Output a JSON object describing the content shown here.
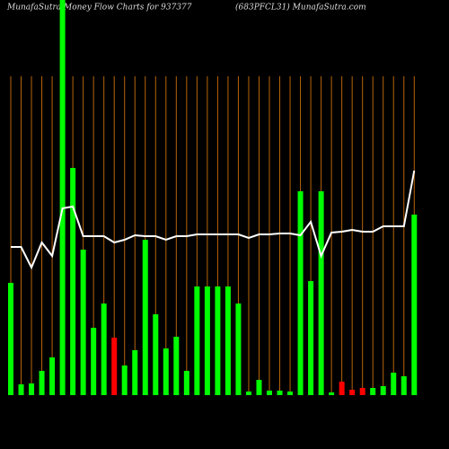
{
  "chart_data": {
    "type": "bar",
    "title": "MunafaSutra  Money Flow  Charts for 937377",
    "subtitle": "(683PFCL31) MunafaSutra.com",
    "values": [
      125,
      12,
      13,
      27,
      42,
      440,
      253,
      162,
      75,
      102,
      64,
      33,
      50,
      173,
      90,
      52,
      65,
      27,
      121,
      121,
      121,
      121,
      102,
      4,
      17,
      5,
      5,
      4,
      227,
      127,
      227,
      3,
      15,
      6,
      8,
      8,
      10,
      25,
      21,
      201
    ],
    "colors": [
      "#00ff00",
      "#00ff00",
      "#00ff00",
      "#00ff00",
      "#00ff00",
      "#00ff00",
      "#00ff00",
      "#00ff00",
      "#00ff00",
      "#00ff00",
      "#ff0000",
      "#00ff00",
      "#00ff00",
      "#00ff00",
      "#00ff00",
      "#00ff00",
      "#00ff00",
      "#00ff00",
      "#00ff00",
      "#00ff00",
      "#00ff00",
      "#00ff00",
      "#00ff00",
      "#00ff00",
      "#00ff00",
      "#00ff00",
      "#00ff00",
      "#00ff00",
      "#00ff00",
      "#00ff00",
      "#00ff00",
      "#00ff00",
      "#ff0000",
      "#ff0000",
      "#ff0000",
      "#00ff00",
      "#00ff00",
      "#00ff00",
      "#00ff00",
      "#00ff00"
    ],
    "line_values": [
      165,
      165,
      142,
      170,
      155,
      208,
      210,
      177,
      177,
      177,
      170,
      173,
      178,
      177,
      177,
      173,
      177,
      177,
      179,
      179,
      179,
      179,
      179,
      175,
      179,
      179,
      180,
      180,
      178,
      193,
      155,
      181,
      182,
      184,
      182,
      182,
      188,
      188,
      188,
      250
    ],
    "line_color": "#ffffff",
    "gridline_color": "#b8650a"
  }
}
